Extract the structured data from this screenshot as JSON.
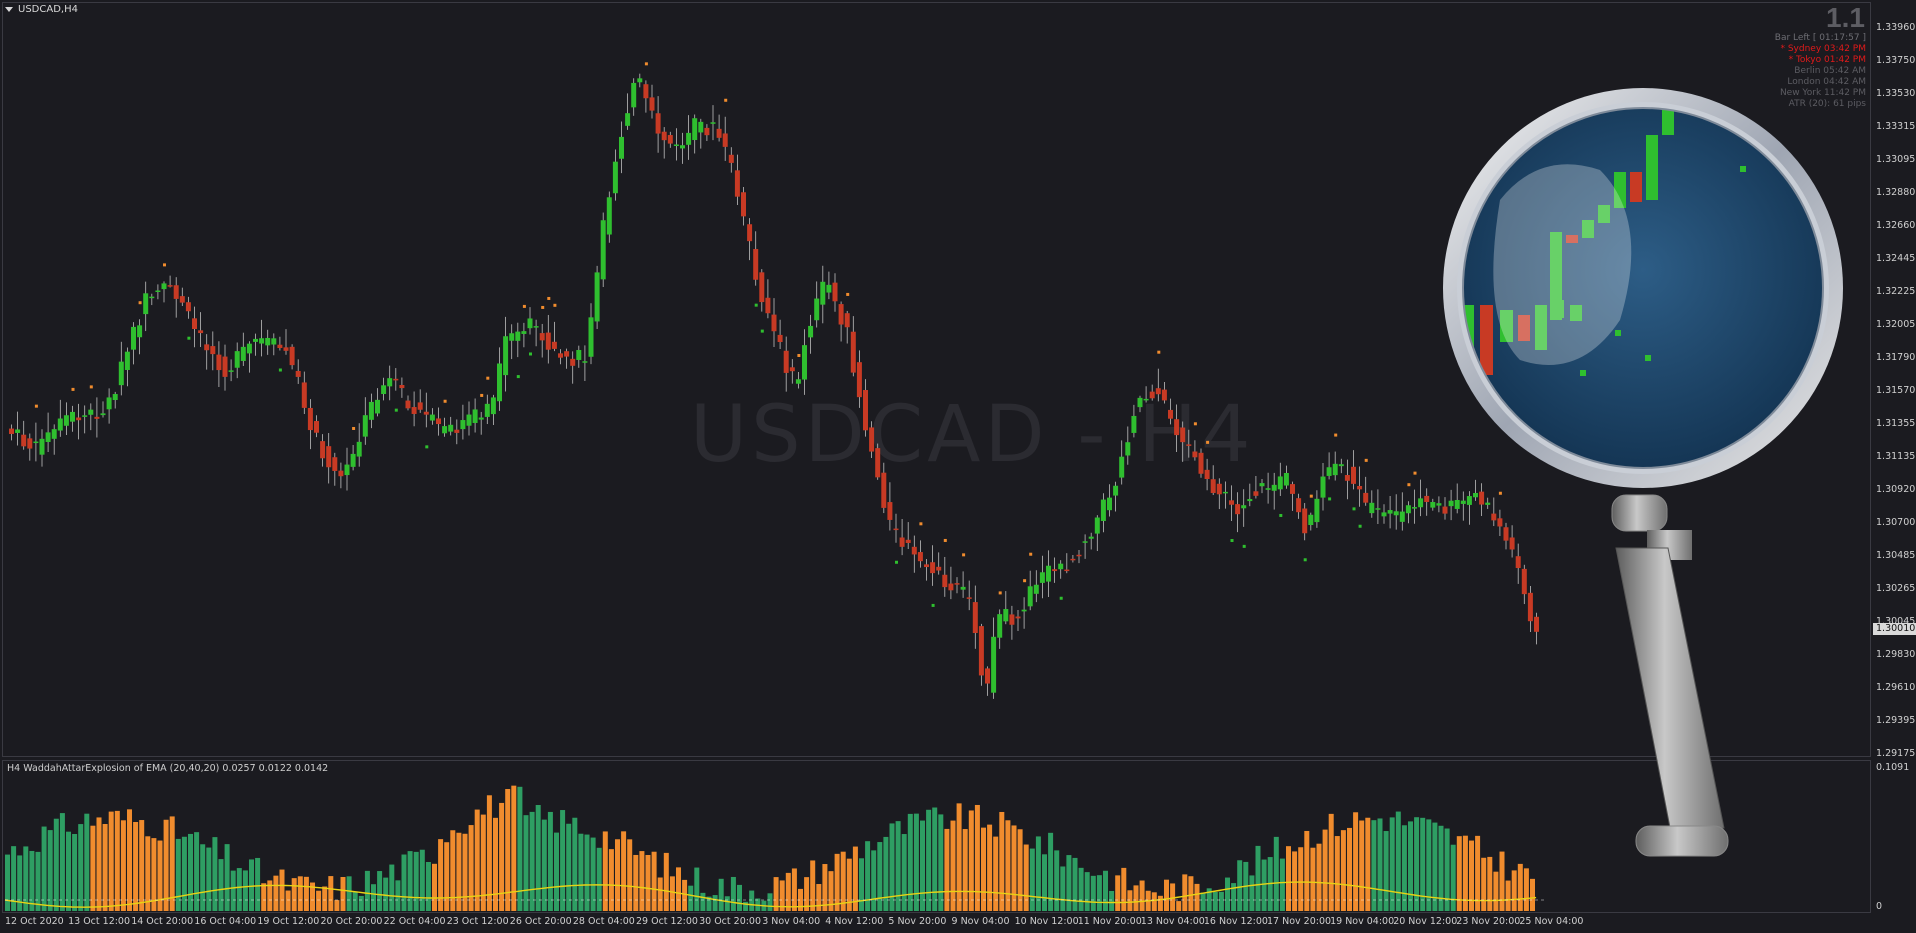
{
  "chart": {
    "symbol_title": "USDCAD,H4",
    "watermark": "USDCAD - H4",
    "current_price": "1.30010",
    "price_axis": [
      "1.33960",
      "1.33750",
      "1.33530",
      "1.33315",
      "1.33095",
      "1.32880",
      "1.32660",
      "1.32445",
      "1.32225",
      "1.32005",
      "1.31790",
      "1.31570",
      "1.31355",
      "1.31135",
      "1.30920",
      "1.30700",
      "1.30485",
      "1.30265",
      "1.30045",
      "1.29830",
      "1.29610",
      "1.29395",
      "1.29175"
    ],
    "time_axis": [
      "12 Oct 2020",
      "13 Oct 12:00",
      "14 Oct 20:00",
      "16 Oct 04:00",
      "19 Oct 12:00",
      "20 Oct 20:00",
      "22 Oct 04:00",
      "23 Oct 12:00",
      "26 Oct 20:00",
      "28 Oct 04:00",
      "29 Oct 12:00",
      "30 Oct 20:00",
      "3 Nov 04:00",
      "4 Nov 12:00",
      "5 Nov 20:00",
      "9 Nov 04:00",
      "10 Nov 12:00",
      "11 Nov 20:00",
      "13 Nov 04:00",
      "16 Nov 12:00",
      "17 Nov 20:00",
      "19 Nov 04:00",
      "20 Nov 12:00",
      "23 Nov 20:00",
      "25 Nov 04:00"
    ],
    "colors": {
      "bull": "#2fbf2f",
      "bear": "#c83a24",
      "background": "#1b1b20",
      "axis_text": "#d0d0d0",
      "hist_green": "#2e9e63",
      "hist_orange": "#f08c2e",
      "signal_line": "#e8d314"
    }
  },
  "session_info": {
    "big_number": "1.1",
    "bar_left_label": "Bar Left",
    "bar_left_value": "[ 01:17:57 ]",
    "rows": [
      {
        "name": "* Sydney",
        "time": "03:42 PM",
        "active": true
      },
      {
        "name": "* Tokyo",
        "time": "01:42 PM",
        "active": true
      },
      {
        "name": "Berlin",
        "time": "05:42 AM",
        "active": false
      },
      {
        "name": "London",
        "time": "04:42 AM",
        "active": false
      },
      {
        "name": "New York",
        "time": "11:42 PM",
        "active": false
      }
    ],
    "atr": "ATR (20): 61 pips"
  },
  "indicator": {
    "title": "H4  WaddahAttarExplosion of EMA (20,40,20) 0.0257 0.0122 0.0142",
    "axis_top": "0.1091",
    "axis_bottom": "0"
  }
}
